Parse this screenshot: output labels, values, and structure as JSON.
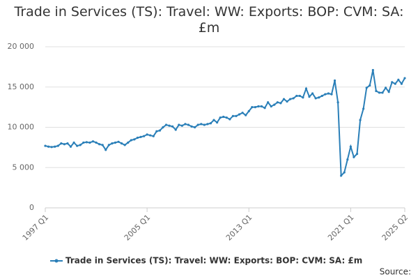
{
  "chart_data": {
    "type": "line",
    "title": "Trade in Services (TS): Travel: WW: Exports: BOP: CVM: SA: £m",
    "categories": [
      "1997 Q1",
      null,
      null,
      null,
      null,
      null,
      null,
      null,
      null,
      null,
      null,
      null,
      null,
      null,
      null,
      null,
      null,
      null,
      null,
      null,
      null,
      null,
      null,
      null,
      null,
      null,
      null,
      null,
      null,
      null,
      null,
      null,
      "2005 Q1",
      null,
      null,
      null,
      null,
      null,
      null,
      null,
      null,
      null,
      null,
      null,
      null,
      null,
      null,
      null,
      null,
      null,
      null,
      null,
      null,
      null,
      null,
      null,
      null,
      null,
      null,
      null,
      null,
      null,
      null,
      null,
      "2013 Q1",
      null,
      null,
      null,
      null,
      null,
      null,
      null,
      null,
      null,
      null,
      null,
      null,
      null,
      null,
      null,
      null,
      null,
      null,
      null,
      null,
      null,
      null,
      null,
      null,
      null,
      null,
      null,
      null,
      null,
      null,
      null,
      "2021 Q1",
      null,
      null,
      null,
      null,
      null,
      null,
      null,
      null,
      null,
      null,
      null,
      null,
      null,
      null,
      null,
      null,
      "2025 Q2"
    ],
    "series": [
      {
        "name": "Trade in Services (TS): Travel: WW: Exports: BOP: CVM: SA: £m",
        "color": "#2a7fb8",
        "values": [
          7700,
          7600,
          7550,
          7600,
          7700,
          8000,
          7900,
          8000,
          7600,
          8100,
          7700,
          7800,
          8100,
          8150,
          8100,
          8250,
          8100,
          7900,
          7800,
          7200,
          7800,
          8000,
          8100,
          8200,
          8000,
          7800,
          8100,
          8400,
          8500,
          8700,
          8800,
          8900,
          9100,
          9000,
          8900,
          9500,
          9600,
          10000,
          10300,
          10200,
          10100,
          9700,
          10300,
          10200,
          10400,
          10300,
          10100,
          10000,
          10300,
          10400,
          10300,
          10400,
          10500,
          10900,
          10600,
          11200,
          11300,
          11200,
          11000,
          11400,
          11400,
          11600,
          11800,
          11500,
          12000,
          12500,
          12500,
          12600,
          12600,
          12400,
          13100,
          12600,
          12800,
          13100,
          13000,
          13500,
          13200,
          13500,
          13600,
          13900,
          13900,
          13700,
          14800,
          13800,
          14200,
          13600,
          13700,
          13900,
          14100,
          14200,
          14100,
          15800,
          13100,
          4000,
          4400,
          6000,
          7600,
          6300,
          6700,
          10900,
          12300,
          14900,
          15200,
          17100,
          14500,
          14300,
          14300,
          14900,
          14400,
          15600,
          15400,
          15900,
          15400,
          16100
        ]
      }
    ],
    "ylim": [
      0,
      20000
    ],
    "yticks": [
      0,
      {
        "value": 5000,
        "label": "5 000"
      },
      {
        "value": 10000,
        "label": "10 000"
      },
      {
        "value": 15000,
        "label": "15 000"
      },
      {
        "value": 20000,
        "label": "20 000"
      }
    ],
    "grid": true,
    "source": "Source:"
  }
}
